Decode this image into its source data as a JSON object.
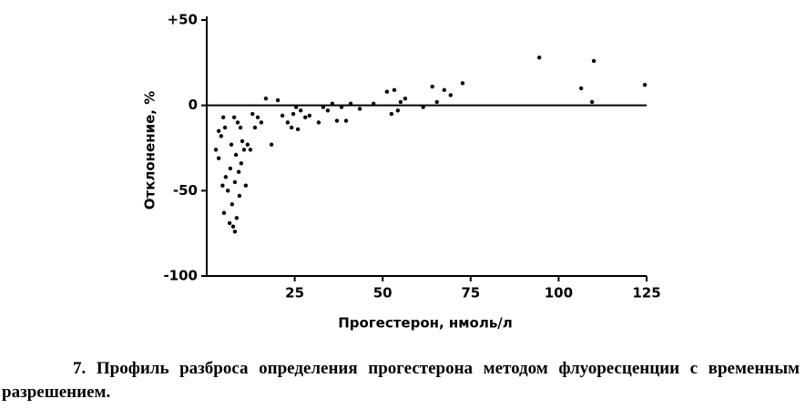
{
  "chart_data": {
    "type": "scatter",
    "caption": "7. Профиль разброса определения прогестерона методом флуоресценции с временным разрешением.",
    "x_label": "Прогестерон, нмоль/л",
    "y_label": "Отклонение, %",
    "xlim": [
      0,
      125
    ],
    "xticks": [
      25,
      50,
      75,
      100,
      125
    ],
    "ylim": [
      -100,
      50
    ],
    "yticks": [
      {
        "value": 50,
        "label": "+50"
      },
      0,
      -50,
      -100
    ],
    "zero_line": true,
    "color": "#000000",
    "x": [
      2.6,
      3.4,
      4.1,
      4.7,
      5.2,
      4.9,
      5.4,
      6,
      6.5,
      6.7,
      7,
      7.2,
      7.5,
      8,
      8.3,
      8.5,
      8.8,
      9.1,
      9.3,
      9.8,
      10.1,
      10.6,
      11.1,
      11.6,
      12.4,
      13,
      13.7,
      14.5,
      15.5,
      16.8,
      18.4,
      20.2,
      21.5,
      23,
      24.1,
      24.6,
      25.4,
      25.9,
      26.7,
      28,
      29.2,
      31.8,
      33.1,
      34.4,
      35.7,
      37,
      38.3,
      39.6,
      40.9,
      43.5,
      47.4,
      51.2,
      52.5,
      53.3,
      54.3,
      55.1,
      56.4,
      61.5,
      64.1,
      65.4,
      67.5,
      69.3,
      72.7,
      94.5,
      106.4,
      109.5,
      110,
      124.5,
      3.4,
      4.5,
      7.8,
      9.6,
      8
    ],
    "values": [
      -26,
      -31,
      -18,
      -7,
      -13,
      -63,
      -42,
      -50,
      -69,
      -37,
      -23,
      -58,
      -71,
      -45,
      -29,
      -66,
      -10,
      -39,
      -53,
      -34,
      -21,
      -26,
      -47,
      -23,
      -26,
      -5,
      -13,
      -7,
      -10,
      4,
      -23,
      3,
      -6,
      -10,
      -13,
      -5,
      -1,
      -14,
      -3,
      -7,
      -6,
      -10,
      -1,
      -3,
      1,
      -9,
      -1,
      -9,
      1,
      -2,
      1,
      8,
      -5,
      9,
      -3,
      2,
      4,
      -1,
      11,
      2,
      9,
      6,
      13,
      28,
      10,
      2,
      26,
      12,
      -15,
      -47,
      -7,
      -13,
      -74
    ]
  }
}
